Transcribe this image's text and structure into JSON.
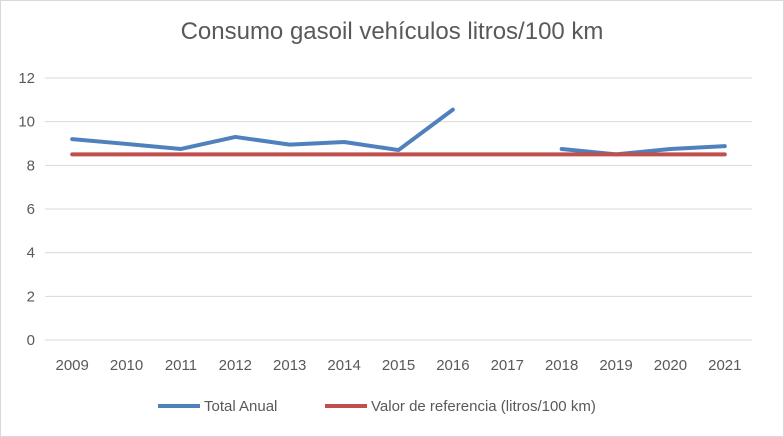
{
  "chart_data": {
    "type": "line",
    "title": "Consumo gasoil vehículos litros/100 km",
    "categories": [
      "2009",
      "2010",
      "2011",
      "2012",
      "2013",
      "2014",
      "2015",
      "2016",
      "2017",
      "2018",
      "2019",
      "2020",
      "2021"
    ],
    "series": [
      {
        "name": "Total Anual",
        "color": "#4f81bd",
        "values": [
          9.2,
          8.98,
          8.75,
          9.3,
          8.95,
          9.07,
          8.7,
          10.55,
          null,
          8.75,
          8.5,
          8.75,
          8.88
        ]
      },
      {
        "name": "Valor de referencia (litros/100 km)",
        "color": "#c0504d",
        "values": [
          8.5,
          8.5,
          8.5,
          8.5,
          8.5,
          8.5,
          8.5,
          8.5,
          8.5,
          8.5,
          8.5,
          8.5,
          8.5
        ]
      }
    ],
    "xlabel": "",
    "ylabel": "",
    "ylim": [
      0,
      12
    ],
    "yticks": [
      0,
      2,
      4,
      6,
      8,
      10,
      12
    ],
    "grid": true,
    "legend_position": "bottom"
  }
}
